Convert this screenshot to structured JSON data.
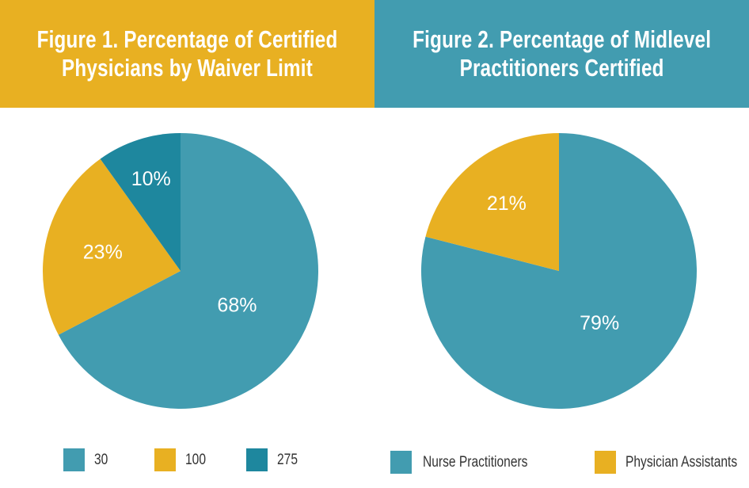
{
  "colors": {
    "teal": "#429cb0",
    "gold": "#e8b022",
    "dark_teal": "#1e879e",
    "header_left_bg": "#e8b022",
    "header_right_bg": "#429cb0"
  },
  "chart_data": [
    {
      "type": "pie",
      "title": "Figure 1. Percentage of Certified Physicians by Waiver Limit",
      "title_lines": [
        "Figure 1. Percentage of Certified",
        "Physicians by Waiver Limit"
      ],
      "categories": [
        "30",
        "100",
        "275"
      ],
      "values": [
        68,
        23,
        10
      ],
      "labels": [
        "68%",
        "23%",
        "10%"
      ],
      "colors": [
        "#429cb0",
        "#e8b022",
        "#1e879e"
      ],
      "start_angle_deg": 0,
      "direction": "clockwise",
      "legend_position": "bottom"
    },
    {
      "type": "pie",
      "title": "Figure 2. Percentage of Midlevel Practitioners Certified",
      "title_lines": [
        "Figure 2. Percentage of Midlevel",
        "Practitioners Certified"
      ],
      "categories": [
        "Nurse Practitioners",
        "Physician Assistants"
      ],
      "values": [
        79,
        21
      ],
      "labels": [
        "79%",
        "21%"
      ],
      "colors": [
        "#429cb0",
        "#e8b022"
      ],
      "start_angle_deg": 0,
      "direction": "clockwise",
      "legend_position": "bottom"
    }
  ]
}
